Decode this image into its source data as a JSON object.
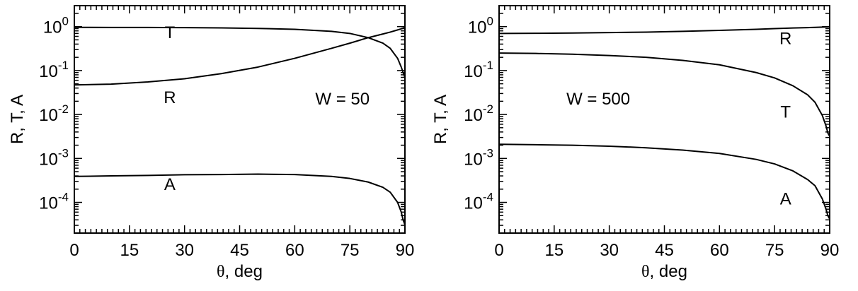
{
  "chart_data": [
    {
      "type": "line",
      "panel": "left",
      "xlabel_symbol": "θ",
      "xlabel_rest": ", deg",
      "ylabel": "R, T, A",
      "xlim": [
        0,
        90
      ],
      "ylog": true,
      "ylim": [
        2e-05,
        3
      ],
      "xticks": [
        0,
        15,
        30,
        45,
        60,
        75,
        90
      ],
      "yticks": [
        {
          "value": 1,
          "base": "10",
          "exp": "0"
        },
        {
          "value": 0.1,
          "base": "10",
          "exp": "-1"
        },
        {
          "value": 0.01,
          "base": "10",
          "exp": "-2"
        },
        {
          "value": 0.001,
          "base": "10",
          "exp": "-3"
        },
        {
          "value": 0.0001,
          "base": "10",
          "exp": "-4"
        }
      ],
      "annotation": {
        "text": "W = 50",
        "x": 73,
        "y": 0.017
      },
      "series": [
        {
          "name": "T",
          "label_at": {
            "x": 26,
            "y": 0.55
          },
          "x": [
            0,
            10,
            20,
            30,
            40,
            50,
            60,
            70,
            75,
            80,
            84,
            86,
            88,
            89,
            89.5,
            90
          ],
          "y": [
            0.96,
            0.958,
            0.955,
            0.948,
            0.935,
            0.91,
            0.87,
            0.78,
            0.7,
            0.56,
            0.42,
            0.32,
            0.19,
            0.12,
            0.09,
            0.07
          ]
        },
        {
          "name": "R",
          "label_at": {
            "x": 26,
            "y": 0.018
          },
          "x": [
            0,
            10,
            20,
            30,
            40,
            50,
            60,
            70,
            75,
            80,
            84,
            86,
            88,
            89,
            89.5,
            90
          ],
          "y": [
            0.047,
            0.049,
            0.055,
            0.065,
            0.085,
            0.12,
            0.19,
            0.32,
            0.42,
            0.56,
            0.68,
            0.75,
            0.84,
            0.89,
            0.92,
            0.95
          ]
        },
        {
          "name": "A",
          "label_at": {
            "x": 26,
            "y": 0.00019
          },
          "x": [
            0,
            10,
            20,
            30,
            40,
            50,
            60,
            70,
            75,
            80,
            84,
            86,
            88,
            89,
            89.5,
            90
          ],
          "y": [
            0.00039,
            0.0004,
            0.00041,
            0.000425,
            0.00043,
            0.00044,
            0.00043,
            0.00039,
            0.00035,
            0.00029,
            0.00022,
            0.00017,
            0.0001,
            6e-05,
            4e-05,
            3.1e-05
          ]
        }
      ]
    },
    {
      "type": "line",
      "panel": "right",
      "xlabel_symbol": "θ",
      "xlabel_rest": ", deg",
      "ylabel": "R, T, A",
      "xlim": [
        0,
        90
      ],
      "ylog": true,
      "ylim": [
        2e-05,
        3
      ],
      "xticks": [
        0,
        15,
        30,
        45,
        60,
        75,
        90
      ],
      "yticks": [
        {
          "value": 1,
          "base": "10",
          "exp": "0"
        },
        {
          "value": 0.1,
          "base": "10",
          "exp": "-1"
        },
        {
          "value": 0.01,
          "base": "10",
          "exp": "-2"
        },
        {
          "value": 0.001,
          "base": "10",
          "exp": "-3"
        },
        {
          "value": 0.0001,
          "base": "10",
          "exp": "-4"
        }
      ],
      "annotation": {
        "text": "W = 500",
        "x": 27,
        "y": 0.017
      },
      "series": [
        {
          "name": "R",
          "label_at": {
            "x": 78,
            "y": 0.4
          },
          "x": [
            0,
            10,
            20,
            30,
            40,
            50,
            60,
            70,
            75,
            80,
            84,
            86,
            88,
            89,
            89.5,
            90
          ],
          "y": [
            0.7,
            0.705,
            0.715,
            0.73,
            0.75,
            0.78,
            0.82,
            0.87,
            0.9,
            0.93,
            0.95,
            0.962,
            0.975,
            0.985,
            0.99,
            0.995
          ]
        },
        {
          "name": "T",
          "label_at": {
            "x": 78,
            "y": 0.0085
          },
          "x": [
            0,
            10,
            20,
            30,
            40,
            50,
            60,
            70,
            75,
            80,
            84,
            86,
            88,
            89,
            89.5,
            90
          ],
          "y": [
            0.25,
            0.245,
            0.235,
            0.22,
            0.2,
            0.17,
            0.135,
            0.09,
            0.068,
            0.045,
            0.028,
            0.019,
            0.0095,
            0.0055,
            0.0038,
            0.0032
          ]
        },
        {
          "name": "A",
          "label_at": {
            "x": 78,
            "y": 9e-05
          },
          "x": [
            0,
            10,
            20,
            30,
            40,
            50,
            60,
            70,
            75,
            80,
            84,
            86,
            88,
            89,
            89.5,
            90
          ],
          "y": [
            0.0021,
            0.00205,
            0.002,
            0.0019,
            0.00175,
            0.00155,
            0.0013,
            0.00095,
            0.00075,
            0.00052,
            0.00033,
            0.00024,
            0.00012,
            7e-05,
            5e-05,
            4.2e-05
          ]
        }
      ]
    }
  ]
}
